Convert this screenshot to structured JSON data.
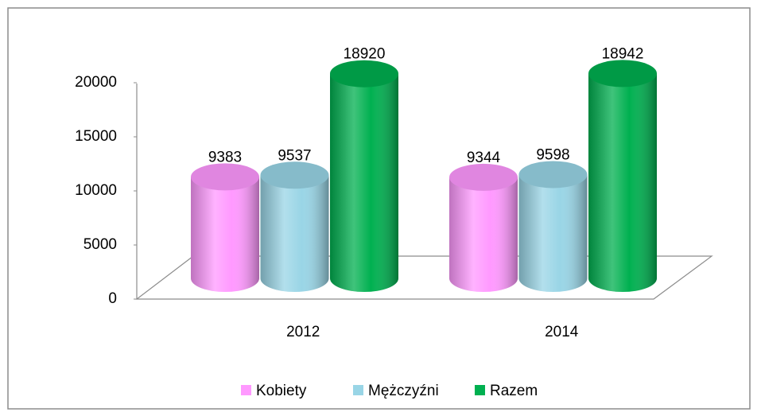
{
  "chart_data": {
    "type": "bar",
    "categories": [
      "2012",
      "2014"
    ],
    "series": [
      {
        "name": "Kobiety",
        "color": "#ff99ff",
        "values": [
          9383,
          9344
        ]
      },
      {
        "name": "Mężczyźni",
        "color": "#99d5e6",
        "values": [
          9537,
          9598
        ]
      },
      {
        "name": "Razem",
        "color": "#00b050",
        "values": [
          18920,
          18942
        ]
      }
    ],
    "ylim": [
      0,
      20000
    ],
    "yticks": [
      0,
      5000,
      10000,
      15000,
      20000
    ],
    "legend": "bottom"
  }
}
